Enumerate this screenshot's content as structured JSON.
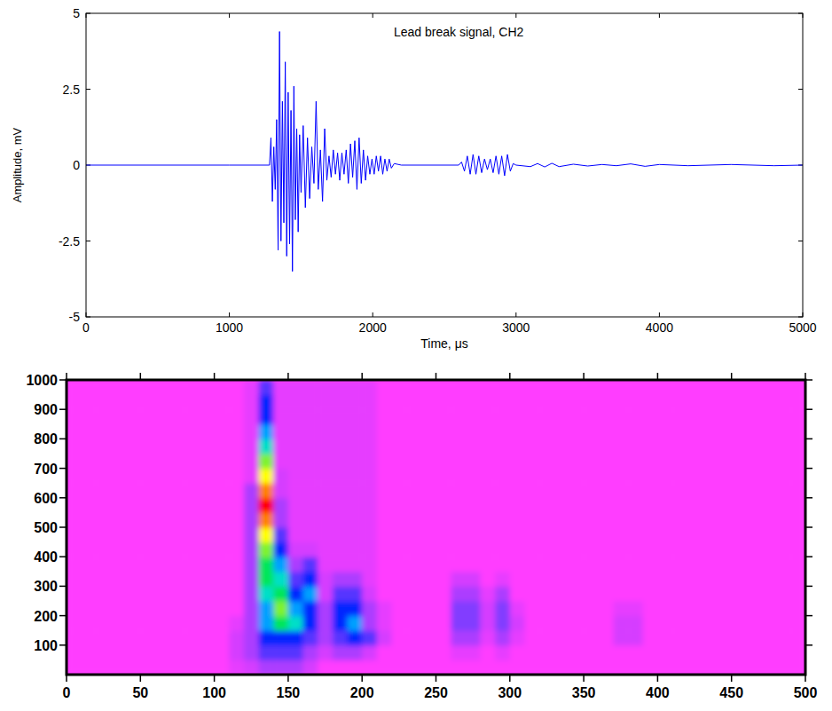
{
  "chart_data": [
    {
      "type": "line",
      "title": "Lead break signal, CH2",
      "x_label": "Time, μs",
      "y_label": "Amplitude, mV",
      "xlim": [
        0,
        5000
      ],
      "ylim": [
        -5,
        5
      ],
      "xticks": [
        0,
        1000,
        2000,
        3000,
        4000,
        5000
      ],
      "yticks": [
        -5,
        -2.5,
        0,
        2.5,
        5
      ],
      "x": [
        0,
        1000,
        1280,
        1290,
        1300,
        1310,
        1320,
        1330,
        1340,
        1350,
        1360,
        1370,
        1380,
        1390,
        1400,
        1410,
        1420,
        1430,
        1440,
        1450,
        1460,
        1470,
        1480,
        1490,
        1500,
        1515,
        1530,
        1545,
        1560,
        1575,
        1590,
        1605,
        1620,
        1635,
        1650,
        1665,
        1680,
        1695,
        1710,
        1725,
        1740,
        1755,
        1770,
        1785,
        1800,
        1815,
        1830,
        1845,
        1860,
        1875,
        1890,
        1905,
        1920,
        1935,
        1950,
        1965,
        1980,
        1995,
        2010,
        2025,
        2040,
        2055,
        2070,
        2085,
        2100,
        2115,
        2130,
        2150,
        2200,
        2600,
        2620,
        2640,
        2660,
        2680,
        2700,
        2720,
        2740,
        2760,
        2780,
        2800,
        2820,
        2840,
        2860,
        2880,
        2900,
        2920,
        2940,
        2960,
        2980,
        3000,
        3100,
        3150,
        3200,
        3250,
        3300,
        3400,
        3500,
        3600,
        3700,
        3800,
        3900,
        4000,
        4200,
        4500,
        4800,
        5000
      ],
      "series": [
        {
          "color": "#0000ff",
          "values": [
            0,
            0,
            0,
            0.9,
            -1.2,
            0.6,
            -0.8,
            1.5,
            -2.8,
            4.4,
            -2.5,
            2.1,
            -1.9,
            3.4,
            -3.0,
            2.4,
            -2.6,
            1.8,
            -3.5,
            2.6,
            -1.8,
            1.2,
            -2.2,
            1.0,
            -0.9,
            1.3,
            -1.4,
            0.9,
            -1.1,
            0.6,
            -0.6,
            2.1,
            -0.8,
            0.5,
            -1.2,
            1.2,
            -0.5,
            0.3,
            -0.4,
            0.5,
            -0.3,
            0.4,
            -0.5,
            0.4,
            -0.3,
            0.5,
            -0.6,
            0.7,
            -0.4,
            0.8,
            -0.8,
            0.9,
            -0.6,
            0.5,
            -0.5,
            0.3,
            -0.3,
            0.2,
            -0.3,
            0.3,
            -0.2,
            0.3,
            -0.3,
            0.2,
            -0.2,
            0.2,
            -0.1,
            0.05,
            0,
            0,
            0.1,
            -0.2,
            0.3,
            -0.3,
            0.35,
            -0.3,
            0.3,
            -0.25,
            0.2,
            -0.15,
            0.2,
            -0.25,
            0.3,
            -0.3,
            0.3,
            -0.35,
            0.35,
            -0.2,
            0.05,
            0,
            -0.05,
            0.05,
            -0.06,
            0.06,
            -0.05,
            0.03,
            -0.03,
            0.02,
            -0.02,
            0.04,
            -0.04,
            0.02,
            -0.02,
            0.02,
            -0.02,
            0
          ]
        }
      ]
    },
    {
      "type": "heatmap",
      "xlim": [
        0,
        500
      ],
      "ylim": [
        0,
        1000
      ],
      "xticks": [
        0,
        50,
        100,
        150,
        200,
        250,
        300,
        350,
        400,
        450,
        500
      ],
      "yticks": [
        100,
        200,
        300,
        400,
        500,
        600,
        700,
        800,
        900,
        1000
      ],
      "zlim": [
        0,
        10
      ],
      "x_edges": [
        0,
        10,
        20,
        30,
        40,
        50,
        60,
        70,
        80,
        90,
        100,
        110,
        120,
        130,
        140,
        150,
        160,
        170,
        180,
        190,
        200,
        210,
        220,
        230,
        240,
        250,
        260,
        270,
        280,
        290,
        300,
        310,
        320,
        330,
        340,
        350,
        360,
        370,
        380,
        390,
        400,
        410,
        420,
        430,
        440,
        450,
        460,
        470,
        480,
        490,
        500
      ],
      "y_edges": [
        0,
        50,
        100,
        150,
        200,
        250,
        300,
        350,
        400,
        450,
        500,
        550,
        600,
        650,
        700,
        750,
        800,
        850,
        900,
        950,
        1000
      ],
      "z": [
        [
          0,
          0,
          0,
          0,
          0,
          0,
          0,
          0,
          0,
          0,
          0,
          0.3,
          0.5,
          1,
          1,
          1,
          0.5,
          0,
          0,
          0,
          0,
          0,
          0,
          0,
          0,
          0,
          0,
          0,
          0,
          0,
          0,
          0,
          0,
          0,
          0,
          0,
          0,
          0,
          0,
          0,
          0,
          0,
          0,
          0,
          0,
          0,
          0,
          0,
          0,
          0
        ],
        [
          0,
          0,
          0,
          0,
          0,
          0,
          0,
          0,
          0,
          0,
          0,
          0.5,
          1,
          2,
          2,
          2,
          1,
          0.5,
          1,
          1,
          0.5,
          0,
          0,
          0,
          0,
          0,
          0.3,
          0.3,
          0,
          0.3,
          0,
          0,
          0,
          0,
          0,
          0,
          0,
          0,
          0,
          0,
          0,
          0,
          0,
          0,
          0,
          0,
          0,
          0,
          0,
          0
        ],
        [
          0,
          0,
          0,
          0,
          0,
          0,
          0,
          0,
          0,
          0,
          0,
          0.5,
          1,
          3,
          3,
          3,
          2,
          1,
          2,
          3,
          2,
          0.5,
          0,
          0,
          0,
          0,
          1,
          1,
          0.3,
          1,
          0.3,
          0,
          0,
          0,
          0,
          0,
          0,
          0.5,
          0.5,
          0,
          0,
          0,
          0,
          0,
          0,
          0,
          0,
          0,
          0,
          0
        ],
        [
          0,
          0,
          0,
          0,
          0,
          0,
          0,
          0,
          0,
          0,
          0,
          0.3,
          1,
          4,
          6,
          5,
          3,
          1,
          3,
          4,
          1,
          0.3,
          0,
          0,
          0,
          0,
          1.5,
          1.5,
          0.5,
          1.5,
          0.5,
          0,
          0,
          0,
          0,
          0,
          0,
          0.5,
          0.5,
          0,
          0,
          0,
          0,
          0,
          0,
          0,
          0,
          0,
          0,
          0
        ],
        [
          0,
          0,
          0,
          0,
          0,
          0,
          0,
          0,
          0,
          0,
          0,
          0,
          1,
          4,
          7,
          4,
          3,
          1,
          3,
          3,
          1,
          0.3,
          0,
          0,
          0,
          0,
          1.5,
          1.5,
          0.5,
          1.5,
          0.3,
          0,
          0,
          0,
          0,
          0,
          0,
          0.3,
          0.3,
          0,
          0,
          0,
          0,
          0,
          0,
          0,
          0,
          0,
          0,
          0
        ],
        [
          0,
          0,
          0,
          0,
          0,
          0,
          0,
          0,
          0,
          0,
          0,
          0,
          1,
          5,
          6,
          3,
          4,
          0.5,
          2,
          2,
          0.5,
          0,
          0,
          0,
          0,
          0,
          1,
          1,
          0.3,
          1,
          0,
          0,
          0,
          0,
          0,
          0,
          0,
          0,
          0,
          0,
          0,
          0,
          0,
          0,
          0,
          0,
          0,
          0,
          0,
          0
        ],
        [
          0,
          0,
          0,
          0,
          0,
          0,
          0,
          0,
          0,
          0,
          0,
          0,
          1,
          6,
          5,
          2,
          3,
          0.5,
          1,
          1,
          0.3,
          0,
          0,
          0,
          0,
          0,
          0.5,
          0.5,
          0,
          0.3,
          0,
          0,
          0,
          0,
          0,
          0,
          0,
          0,
          0,
          0,
          0,
          0,
          0,
          0,
          0,
          0,
          0,
          0,
          0,
          0
        ],
        [
          0,
          0,
          0,
          0,
          0,
          0,
          0,
          0,
          0,
          0,
          0,
          0,
          1,
          6,
          4,
          1,
          2,
          0.3,
          0.3,
          0.3,
          0.3,
          0,
          0,
          0,
          0,
          0,
          0,
          0,
          0,
          0,
          0,
          0,
          0,
          0,
          0,
          0,
          0,
          0,
          0,
          0,
          0,
          0,
          0,
          0,
          0,
          0,
          0,
          0,
          0,
          0
        ],
        [
          0,
          0,
          0,
          0,
          0,
          0,
          0,
          0,
          0,
          0,
          0,
          0,
          1,
          7,
          3,
          0.5,
          0.5,
          0.3,
          0.3,
          0.3,
          0.3,
          0,
          0,
          0,
          0,
          0,
          0,
          0,
          0,
          0,
          0,
          0,
          0,
          0,
          0,
          0,
          0,
          0,
          0,
          0,
          0,
          0,
          0,
          0,
          0,
          0,
          0,
          0,
          0,
          0
        ],
        [
          0,
          0,
          0,
          0,
          0,
          0,
          0,
          0,
          0,
          0,
          0,
          0,
          1,
          8,
          2,
          0.3,
          0.3,
          0.3,
          0.3,
          0.3,
          0.3,
          0,
          0,
          0,
          0,
          0,
          0,
          0,
          0,
          0,
          0,
          0,
          0,
          0,
          0,
          0,
          0,
          0,
          0,
          0,
          0,
          0,
          0,
          0,
          0,
          0,
          0,
          0,
          0,
          0
        ],
        [
          0,
          0,
          0,
          0,
          0,
          0,
          0,
          0,
          0,
          0,
          0,
          0,
          1,
          9,
          1,
          0.3,
          0.3,
          0.3,
          0.3,
          0.3,
          0.3,
          0,
          0,
          0,
          0,
          0,
          0,
          0,
          0,
          0,
          0,
          0,
          0,
          0,
          0,
          0,
          0,
          0,
          0,
          0,
          0,
          0,
          0,
          0,
          0,
          0,
          0,
          0,
          0,
          0
        ],
        [
          0,
          0,
          0,
          0,
          0,
          0,
          0,
          0,
          0,
          0,
          0,
          0,
          1,
          10,
          1,
          0.3,
          0.3,
          0.3,
          0.3,
          0.3,
          0.3,
          0,
          0,
          0,
          0,
          0,
          0,
          0,
          0,
          0,
          0,
          0,
          0,
          0,
          0,
          0,
          0,
          0,
          0,
          0,
          0,
          0,
          0,
          0,
          0,
          0,
          0,
          0,
          0,
          0
        ],
        [
          0,
          0,
          0,
          0,
          0,
          0,
          0,
          0,
          0,
          0,
          0,
          0,
          1,
          9,
          0.5,
          0.3,
          0.3,
          0.3,
          0.3,
          0.3,
          0.3,
          0,
          0,
          0,
          0,
          0,
          0,
          0,
          0,
          0,
          0,
          0,
          0,
          0,
          0,
          0,
          0,
          0,
          0,
          0,
          0,
          0,
          0,
          0,
          0,
          0,
          0,
          0,
          0,
          0
        ],
        [
          0,
          0,
          0,
          0,
          0,
          0,
          0,
          0,
          0,
          0,
          0,
          0,
          0.3,
          8,
          0.5,
          0.3,
          0.3,
          0.3,
          0.3,
          0.3,
          0.3,
          0,
          0,
          0,
          0,
          0,
          0,
          0,
          0,
          0,
          0,
          0,
          0,
          0,
          0,
          0,
          0,
          0,
          0,
          0,
          0,
          0,
          0,
          0,
          0,
          0,
          0,
          0,
          0,
          0
        ],
        [
          0,
          0,
          0,
          0,
          0,
          0,
          0,
          0,
          0,
          0,
          0,
          0,
          0.3,
          7,
          0.3,
          0.3,
          0.3,
          0.3,
          0.3,
          0.3,
          0.3,
          0,
          0,
          0,
          0,
          0,
          0,
          0,
          0,
          0,
          0,
          0,
          0,
          0,
          0,
          0,
          0,
          0,
          0,
          0,
          0,
          0,
          0,
          0,
          0,
          0,
          0,
          0,
          0,
          0
        ],
        [
          0,
          0,
          0,
          0,
          0,
          0,
          0,
          0,
          0,
          0,
          0,
          0,
          0.3,
          5,
          0.3,
          0.3,
          0.3,
          0.3,
          0.3,
          0.3,
          0.3,
          0,
          0,
          0,
          0,
          0,
          0,
          0,
          0,
          0,
          0,
          0,
          0,
          0,
          0,
          0,
          0,
          0,
          0,
          0,
          0,
          0,
          0,
          0,
          0,
          0,
          0,
          0,
          0,
          0
        ],
        [
          0,
          0,
          0,
          0,
          0,
          0,
          0,
          0,
          0,
          0,
          0,
          0,
          0.3,
          4,
          0.3,
          0.3,
          0.3,
          0.3,
          0.3,
          0.3,
          0.3,
          0,
          0,
          0,
          0,
          0,
          0,
          0,
          0,
          0,
          0,
          0,
          0,
          0,
          0,
          0,
          0,
          0,
          0,
          0,
          0,
          0,
          0,
          0,
          0,
          0,
          0,
          0,
          0,
          0
        ],
        [
          0,
          0,
          0,
          0,
          0,
          0,
          0,
          0,
          0,
          0,
          0,
          0,
          0.3,
          3,
          0.3,
          0.3,
          0.3,
          0.3,
          0.3,
          0.3,
          0.3,
          0,
          0,
          0,
          0,
          0,
          0,
          0,
          0,
          0,
          0,
          0,
          0,
          0,
          0,
          0,
          0,
          0,
          0,
          0,
          0,
          0,
          0,
          0,
          0,
          0,
          0,
          0,
          0,
          0
        ],
        [
          0,
          0,
          0,
          0,
          0,
          0,
          0,
          0,
          0,
          0,
          0,
          0,
          0.3,
          3,
          0.3,
          0.3,
          0.3,
          0.3,
          0.3,
          0.3,
          0.3,
          0,
          0,
          0,
          0,
          0,
          0,
          0,
          0,
          0,
          0,
          0,
          0,
          0,
          0,
          0,
          0,
          0,
          0,
          0,
          0,
          0,
          0,
          0,
          0,
          0,
          0,
          0,
          0,
          0
        ],
        [
          0,
          0,
          0,
          0,
          0,
          0,
          0,
          0,
          0,
          0,
          0,
          0,
          0.3,
          2,
          0.3,
          0.3,
          0.3,
          0.3,
          0.3,
          0.3,
          0.3,
          0,
          0,
          0,
          0,
          0,
          0,
          0,
          0,
          0,
          0,
          0,
          0,
          0,
          0,
          0,
          0,
          0,
          0,
          0,
          0,
          0,
          0,
          0,
          0,
          0,
          0,
          0,
          0,
          0
        ]
      ]
    }
  ]
}
